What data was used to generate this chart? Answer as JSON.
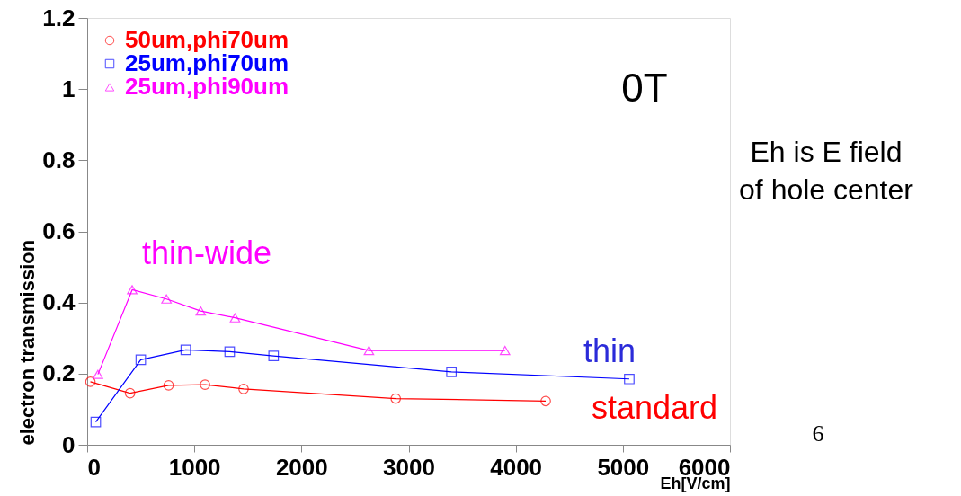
{
  "chart_data": {
    "type": "line",
    "xlabel": "Eh[V/cm]",
    "ylabel": "electron transmission",
    "xlim": [
      0,
      6000
    ],
    "xticks": [
      0,
      1000,
      2000,
      3000,
      4000,
      5000,
      6000
    ],
    "ylim": [
      0,
      1.2
    ],
    "yticks": [
      0,
      0.2,
      0.4,
      0.6,
      0.8,
      1,
      1.2
    ],
    "grid": false,
    "legend": "top left",
    "series": [
      {
        "name": "50um,phi70um",
        "color": "#ff0000",
        "marker": "circle",
        "x": [
          30,
          400,
          760,
          1100,
          1460,
          2880,
          4280
        ],
        "values": [
          0.177,
          0.145,
          0.167,
          0.169,
          0.157,
          0.13,
          0.123
        ]
      },
      {
        "name": "25um,phi70um",
        "color": "#0000ff",
        "marker": "square",
        "x": [
          80,
          500,
          920,
          1330,
          1740,
          3400,
          5060
        ],
        "values": [
          0.064,
          0.239,
          0.267,
          0.262,
          0.25,
          0.205,
          0.185
        ]
      },
      {
        "name": "25um,phi90um",
        "color": "#ff00ff",
        "marker": "triangle",
        "x": [
          100,
          420,
          740,
          1060,
          1380,
          2630,
          3900
        ],
        "values": [
          0.198,
          0.436,
          0.41,
          0.376,
          0.357,
          0.265,
          0.265
        ]
      }
    ],
    "annotations": [
      "0T",
      "thin-wide",
      "thin",
      "standard",
      "Eh is E field of hole center",
      "6"
    ]
  }
}
